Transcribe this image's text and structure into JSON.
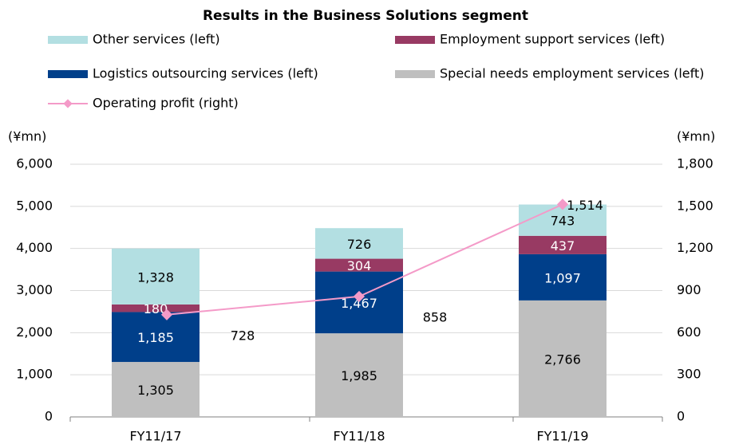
{
  "chart_data": {
    "type": "bar",
    "title": "Results in the Business Solutions segment",
    "categories": [
      "FY11/17",
      "FY11/18",
      "FY11/19"
    ],
    "y_label": "(¥mn)",
    "y2_label": "(¥mn)",
    "ylim": [
      0,
      6000
    ],
    "yticks": [
      0,
      {
        "value": 1000,
        "label": "1,000"
      },
      {
        "value": 2000,
        "label": "2,000"
      },
      {
        "value": 3000,
        "label": "3,000"
      },
      {
        "value": 4000,
        "label": "4,000"
      },
      {
        "value": 5000,
        "label": "5,000"
      },
      {
        "value": 6000,
        "label": "6,000"
      }
    ],
    "y2lim": [
      0,
      1800
    ],
    "y2ticks": [
      0,
      300,
      600,
      900,
      {
        "value": 1200,
        "label": "1,200"
      },
      {
        "value": 1500,
        "label": "1,500"
      },
      {
        "value": 1800,
        "label": "1,800"
      }
    ],
    "grid": true,
    "stacked": true,
    "series": [
      {
        "name": "Special needs employment services (left)",
        "color": "#bfbfbf",
        "values": [
          1305,
          1985,
          2766
        ],
        "value_labels": [
          "1,305",
          "1,985",
          "2,766"
        ],
        "label_color": "#000"
      },
      {
        "name": "Logistics outsourcing services (left)",
        "color": "#003f8a",
        "values": [
          1185,
          1467,
          1097
        ],
        "value_labels": [
          "1,185",
          "1,467",
          "1,097"
        ],
        "label_color": "#fff"
      },
      {
        "name": "Employment support services (left)",
        "color": "#983a63",
        "values": [
          180,
          304,
          437
        ],
        "value_labels": [
          "180",
          "304",
          "437"
        ],
        "label_color": "#fff"
      },
      {
        "name": "Other services (left)",
        "color": "#b3dfe2",
        "values": [
          1328,
          726,
          743
        ],
        "value_labels": [
          "1,328",
          "726",
          "743"
        ],
        "label_color": "#000"
      },
      {
        "name": "Operating profit (right)",
        "color": "#f49ac8",
        "type": "line",
        "axis": "y2",
        "values": [
          728,
          858,
          1514
        ],
        "value_labels": [
          "728",
          "858",
          "1,514"
        ]
      }
    ]
  }
}
